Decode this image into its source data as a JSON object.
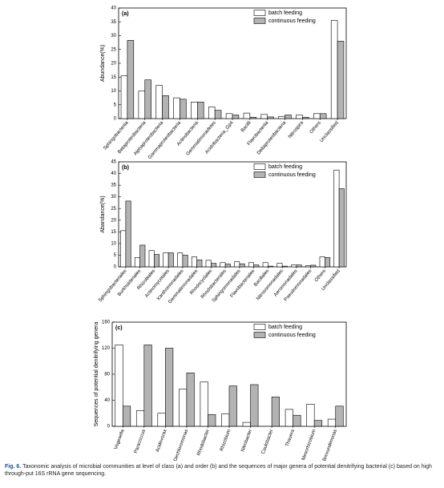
{
  "chart_data": [
    {
      "type": "bar",
      "title": "(a)",
      "y_label": "Abundance(%)",
      "categories": [
        "Sphingobacteriia",
        "Betaproteobacteria",
        "Alphaproteobacteria",
        "Gammaproteobacteria",
        "Actinobacteria",
        "Gemmatimonadetes",
        "Acidobacteria_Gp4",
        "Bacilli",
        "Flavobacteriia",
        "Deltaproteobacteria",
        "Nitrospira",
        "Others",
        "Unclassified"
      ],
      "series": [
        {
          "name": "batch feeding",
          "color": "#ffffff",
          "values": [
            15.5,
            10,
            12,
            7.5,
            6,
            4.2,
            1.8,
            2,
            1.5,
            0.8,
            1.3,
            1.8,
            35.5
          ]
        },
        {
          "name": "continuous feeding",
          "color": "#b3b3b3",
          "values": [
            28.3,
            14,
            8.3,
            7,
            6,
            3,
            1.3,
            0.5,
            0.6,
            1.3,
            0.5,
            1.8,
            28
          ]
        }
      ],
      "ylim": [
        0,
        40
      ],
      "yticks": [
        0,
        5,
        10,
        15,
        20,
        25,
        30,
        35,
        40
      ],
      "legend": "upper right"
    },
    {
      "type": "bar",
      "title": "(b)",
      "y_label": "Abandance(%)",
      "categories": [
        "Sphingobacteriales",
        "Burkholderiales",
        "Rhizobiales",
        "Actinomycetales",
        "Xanthomonadales",
        "Gemmatimonadales",
        "Rhodocyclales",
        "Rhodobacterales",
        "Sphingomonadales",
        "Flavobacteriales",
        "Bacillales",
        "Nitrosomonadales",
        "Aeromonadales",
        "Pseudomonadales",
        "Others",
        "Unclassified"
      ],
      "series": [
        {
          "name": "batch feeding",
          "color": "#ffffff",
          "values": [
            15.5,
            4,
            7,
            6,
            6,
            4.3,
            2.8,
            1.8,
            2.2,
            1.8,
            1.8,
            1.5,
            0.8,
            0.5,
            4.3,
            41.5
          ]
        },
        {
          "name": "continuous feeding",
          "color": "#b3b3b3",
          "values": [
            28.2,
            9.3,
            5.3,
            6,
            5,
            3,
            1.5,
            1.2,
            1.3,
            0.8,
            0.3,
            0.3,
            0.8,
            0.7,
            4,
            33.5
          ]
        }
      ],
      "ylim": [
        0,
        45
      ],
      "yticks": [
        0,
        5,
        10,
        15,
        20,
        25,
        30,
        35,
        40,
        45
      ],
      "legend": "upper right"
    },
    {
      "type": "bar",
      "title": "(c)",
      "y_label": "Sequences of potential denitrifying genera",
      "categories": [
        "Vogesella",
        "Paracoccus",
        "Acidovorax",
        "Dechloromonas",
        "Rhodobacter",
        "Rhizobium",
        "Nitrobacter",
        "Caulobacter",
        "Thauera",
        "Mesorhizobium",
        "Brevundimonas"
      ],
      "series": [
        {
          "name": "batch feeding",
          "color": "#ffffff",
          "values": [
            125,
            24,
            20,
            57,
            68,
            19,
            6,
            0,
            26,
            34,
            11
          ]
        },
        {
          "name": "continuous feeding",
          "color": "#b3b3b3",
          "values": [
            31,
            125,
            120,
            82,
            18,
            62,
            64,
            45,
            17,
            9,
            31
          ]
        }
      ],
      "ylim": [
        0,
        160
      ],
      "yticks": [
        0,
        40,
        80,
        120,
        160
      ],
      "legend": "upper right"
    }
  ],
  "caption": {
    "label": "Fig. 6.",
    "text": "Taxonomic analysis of microbial communities at level of class (a) and order (b) and the sequences of major genera of potential denitrifying bacterial (c) based on high through-put 16S rRNA gene sequencing."
  }
}
